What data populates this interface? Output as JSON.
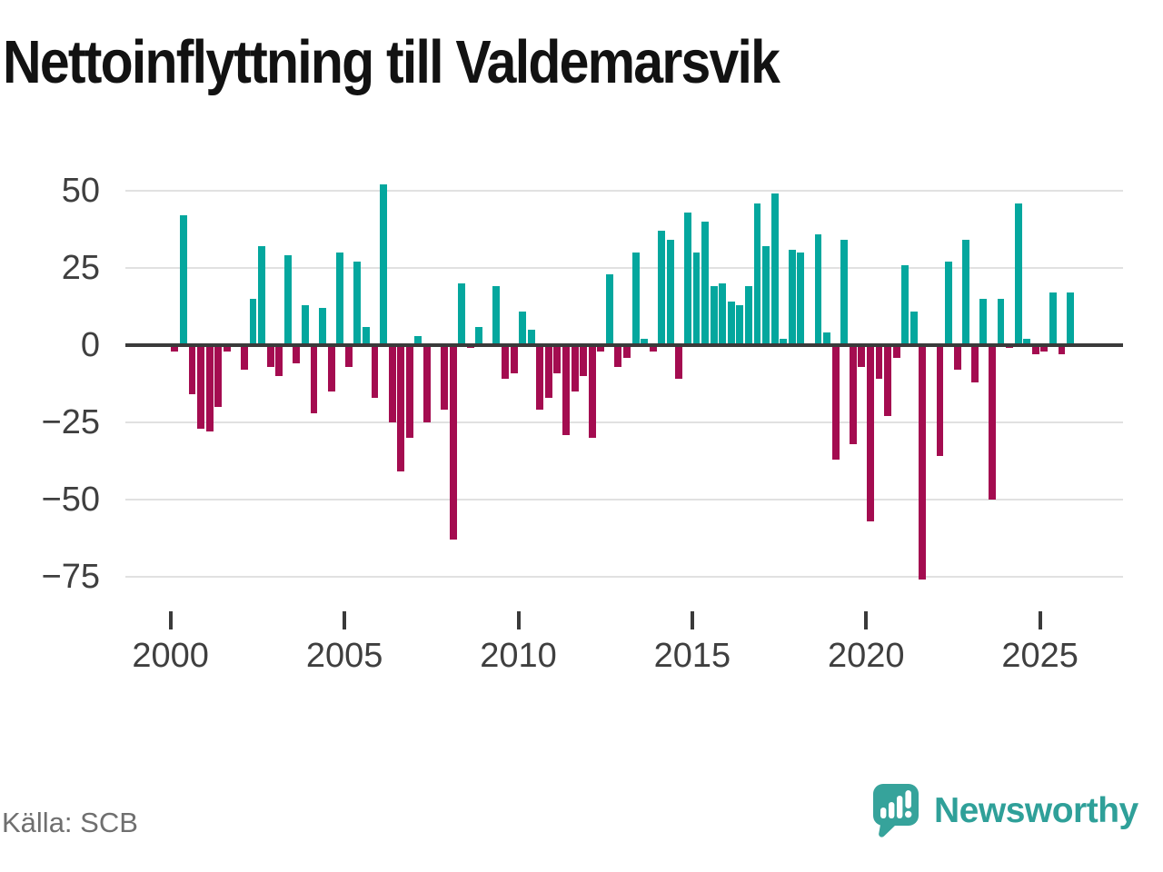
{
  "chart_data": {
    "type": "bar",
    "title": "Nettoinflyttning till Valdemarsvik",
    "source": "Källa: SCB",
    "frequency": "quarterly",
    "x_tick_labels": [
      "2000",
      "2005",
      "2010",
      "2015",
      "2020",
      "2025"
    ],
    "y_ticks": [
      50,
      25,
      0,
      -25,
      -50,
      -75
    ],
    "y_tick_labels": [
      "50",
      "25",
      "0",
      "−25",
      "−50",
      "−75"
    ],
    "ylim": [
      -80,
      55
    ],
    "grid": "horizontal-only",
    "legend": "none",
    "colors": {
      "positive": "#04a79e",
      "negative": "#a40c50"
    },
    "series": [
      {
        "year": 2000,
        "values": [
          -2,
          42,
          -16,
          -27
        ]
      },
      {
        "year": 2001,
        "values": [
          -28,
          -20,
          -2,
          0
        ]
      },
      {
        "year": 2002,
        "values": [
          -8,
          15,
          32,
          -7
        ]
      },
      {
        "year": 2003,
        "values": [
          -10,
          29,
          -6,
          13
        ]
      },
      {
        "year": 2004,
        "values": [
          -22,
          12,
          -15,
          30
        ]
      },
      {
        "year": 2005,
        "values": [
          -7,
          27,
          6,
          -17
        ]
      },
      {
        "year": 2006,
        "values": [
          52,
          -25,
          -41,
          -30
        ]
      },
      {
        "year": 2007,
        "values": [
          3,
          -25,
          0,
          -21
        ]
      },
      {
        "year": 2008,
        "values": [
          -63,
          20,
          -1,
          6
        ]
      },
      {
        "year": 2009,
        "values": [
          0,
          19,
          -11,
          -9
        ]
      },
      {
        "year": 2010,
        "values": [
          11,
          5,
          -21,
          -17
        ]
      },
      {
        "year": 2011,
        "values": [
          -9,
          -29,
          -15,
          -10
        ]
      },
      {
        "year": 2012,
        "values": [
          -30,
          -2,
          23,
          -7
        ]
      },
      {
        "year": 2013,
        "values": [
          -4,
          30,
          2,
          -2
        ]
      },
      {
        "year": 2014,
        "values": [
          37,
          34,
          -11,
          43
        ]
      },
      {
        "year": 2015,
        "values": [
          30,
          40,
          19,
          20
        ]
      },
      {
        "year": 2016,
        "values": [
          14,
          13,
          19,
          46
        ]
      },
      {
        "year": 2017,
        "values": [
          32,
          49,
          2,
          31
        ]
      },
      {
        "year": 2018,
        "values": [
          30,
          0,
          36,
          4
        ]
      },
      {
        "year": 2019,
        "values": [
          -37,
          34,
          -32,
          -7
        ]
      },
      {
        "year": 2020,
        "values": [
          -57,
          -11,
          -23,
          -4
        ]
      },
      {
        "year": 2021,
        "values": [
          26,
          11,
          -76,
          0
        ]
      },
      {
        "year": 2022,
        "values": [
          -36,
          27,
          -8,
          34
        ]
      },
      {
        "year": 2023,
        "values": [
          -12,
          15,
          -50,
          15
        ]
      },
      {
        "year": 2024,
        "values": [
          -1,
          46,
          2,
          -3
        ]
      },
      {
        "year": 2025,
        "values": [
          -2,
          17,
          -3,
          17
        ]
      }
    ]
  },
  "branding": {
    "logo_text": "Newsworthy",
    "logo_icon": "newsworthy-speech-bubble-chart-icon",
    "logo_color": "#2fa099"
  }
}
